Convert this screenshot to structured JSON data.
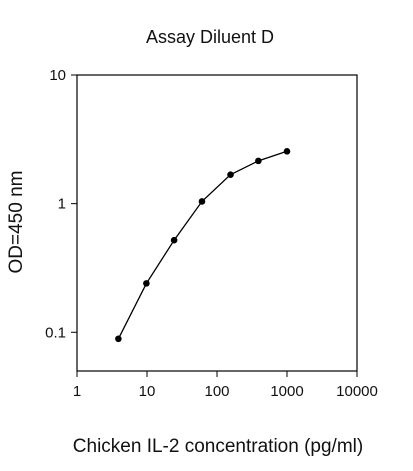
{
  "chart_data": {
    "type": "line",
    "title": "Assay Diluent D",
    "xlabel": "Chicken IL-2 concentration (pg/ml)",
    "ylabel": "OD=450 nm",
    "xscale": "log",
    "yscale": "log",
    "xlim": [
      1,
      10000
    ],
    "ylim": [
      0.05,
      10
    ],
    "xticks": [
      1,
      10,
      100,
      1000,
      10000
    ],
    "xtick_labels": [
      "1",
      "10",
      "100",
      "1000",
      "10000"
    ],
    "yticks": [
      0.1,
      1,
      10
    ],
    "ytick_labels": [
      "0.1",
      "1",
      "10"
    ],
    "grid": false,
    "series": [
      {
        "color": "#000000",
        "marker": "circle",
        "x": [
          3.9,
          9.8,
          24.4,
          61,
          156,
          390,
          1000
        ],
        "y": [
          0.089,
          0.24,
          0.52,
          1.04,
          1.68,
          2.15,
          2.55
        ]
      }
    ]
  }
}
